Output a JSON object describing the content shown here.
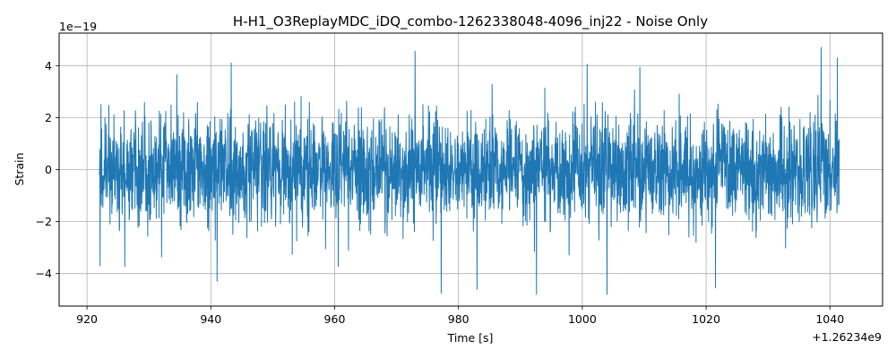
{
  "chart_data": {
    "type": "line",
    "title": "H-H1_O3ReplayMDC_iDQ_combo-1262338048-4096_inj22 - Noise Only",
    "xlabel": "Time [s]",
    "ylabel": "Strain",
    "x_offset_label": "+1.26234e9",
    "y_scale_label": "1e−19",
    "x_offset": 1262340000,
    "y_scale_exponent": -19,
    "xlim": [
      915.5,
      1048.5
    ],
    "ylim": [
      -5.25,
      5.25
    ],
    "x_ticks": [
      920,
      940,
      960,
      980,
      1000,
      1020,
      1040
    ],
    "x_tick_labels": [
      "920",
      "940",
      "960",
      "980",
      "1000",
      "1020",
      "1040"
    ],
    "y_ticks": [
      -4,
      -2,
      0,
      2,
      4
    ],
    "y_tick_labels": [
      "−4",
      "−2",
      "0",
      "2",
      "4"
    ],
    "grid": true,
    "series": [
      {
        "color": "#1f77b4",
        "x_range": [
          922.0,
          1041.5
        ],
        "typical_band": [
          -1.6,
          1.6
        ],
        "max": 4.6,
        "min": -4.8,
        "peaks": [
          {
            "x": 973.0,
            "y": 4.55
          },
          {
            "x": 1038.6,
            "y": 4.7
          },
          {
            "x": 1004.0,
            "y": -4.8
          },
          {
            "x": 977.2,
            "y": -4.75
          },
          {
            "x": 992.6,
            "y": -4.8
          },
          {
            "x": 983.0,
            "y": -4.6
          },
          {
            "x": 1021.5,
            "y": -4.55
          },
          {
            "x": 941.0,
            "y": -4.3
          },
          {
            "x": 943.3,
            "y": 4.1
          },
          {
            "x": 934.5,
            "y": 3.65
          },
          {
            "x": 1041.2,
            "y": 4.3
          },
          {
            "x": 1000.8,
            "y": 4.05
          }
        ]
      }
    ]
  }
}
